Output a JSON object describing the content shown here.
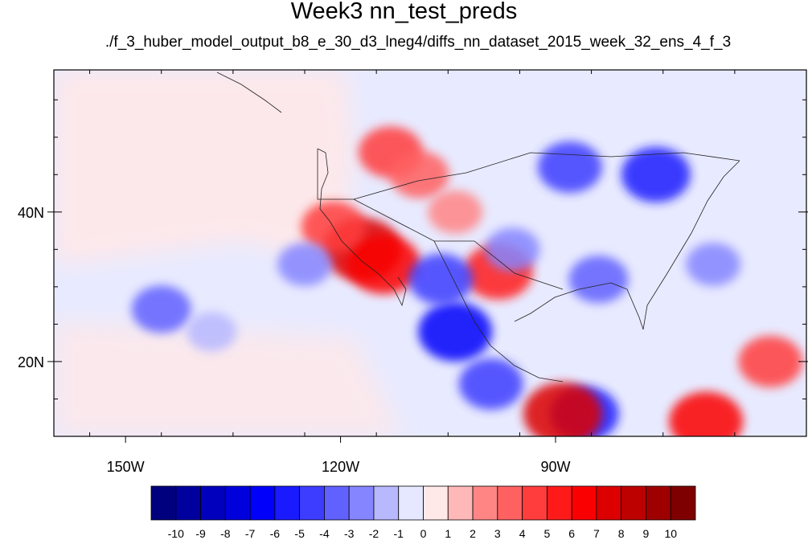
{
  "title": "Week3 nn_test_preds",
  "subtitle": "./f_3_huber_model_output_b8_e_30_d3_lneg4/diffs_nn_dataset_2015_week_32_ens_4_f_3",
  "map": {
    "lon_range": [
      -160,
      -55
    ],
    "lat_range": [
      10,
      59
    ],
    "lon_ticks": [
      {
        "value": -150,
        "label": "150W"
      },
      {
        "value": -120,
        "label": "120W"
      },
      {
        "value": -90,
        "label": "90W"
      }
    ],
    "lat_ticks": [
      {
        "value": 40,
        "label": "40N"
      },
      {
        "value": 20,
        "label": "20N"
      }
    ],
    "field_features": [
      {
        "lon": -117,
        "lat": 35,
        "value": 7
      },
      {
        "lon": -114,
        "lat": 33,
        "value": 6
      },
      {
        "lon": -121,
        "lat": 38,
        "value": 4
      },
      {
        "lon": -113,
        "lat": 48,
        "value": 4
      },
      {
        "lon": -109,
        "lat": 45,
        "value": 3
      },
      {
        "lon": -98,
        "lat": 32,
        "value": 5
      },
      {
        "lon": -104,
        "lat": 40,
        "value": 2
      },
      {
        "lon": -104,
        "lat": 24,
        "value": -6
      },
      {
        "lon": -106,
        "lat": 31,
        "value": -4
      },
      {
        "lon": -99,
        "lat": 17,
        "value": -4
      },
      {
        "lon": -86,
        "lat": 13,
        "value": -5
      },
      {
        "lon": -89,
        "lat": 13,
        "value": 7
      },
      {
        "lon": -88,
        "lat": 46,
        "value": -4
      },
      {
        "lon": -76,
        "lat": 45,
        "value": -5
      },
      {
        "lon": -84,
        "lat": 31,
        "value": -3
      },
      {
        "lon": -96,
        "lat": 35,
        "value": -2
      },
      {
        "lon": -145,
        "lat": 27,
        "value": -3
      },
      {
        "lon": -138,
        "lat": 24,
        "value": -1
      },
      {
        "lon": -60,
        "lat": 20,
        "value": 4
      },
      {
        "lon": -69,
        "lat": 12,
        "value": 6
      },
      {
        "lon": -125,
        "lat": 33,
        "value": -2
      },
      {
        "lon": -68,
        "lat": 33,
        "value": -2
      }
    ]
  },
  "colorbar": {
    "labels": [
      "-10",
      "-9",
      "-8",
      "-7",
      "-6",
      "-5",
      "-4",
      "-3",
      "-2",
      "-1",
      "0",
      "1",
      "2",
      "3",
      "4",
      "5",
      "6",
      "7",
      "8",
      "9",
      "10"
    ],
    "colors": [
      "#00007f",
      "#00009e",
      "#0000bd",
      "#0000dc",
      "#0000fb",
      "#1a1aff",
      "#3d3dff",
      "#6161ff",
      "#8585ff",
      "#b8b8ff",
      "#e5e8ff",
      "#ffe8e8",
      "#ffb8b8",
      "#ff8585",
      "#ff6161",
      "#ff3d3d",
      "#ff1a1a",
      "#fb0000",
      "#dc0000",
      "#bd0000",
      "#9e0000",
      "#7f0000"
    ]
  }
}
